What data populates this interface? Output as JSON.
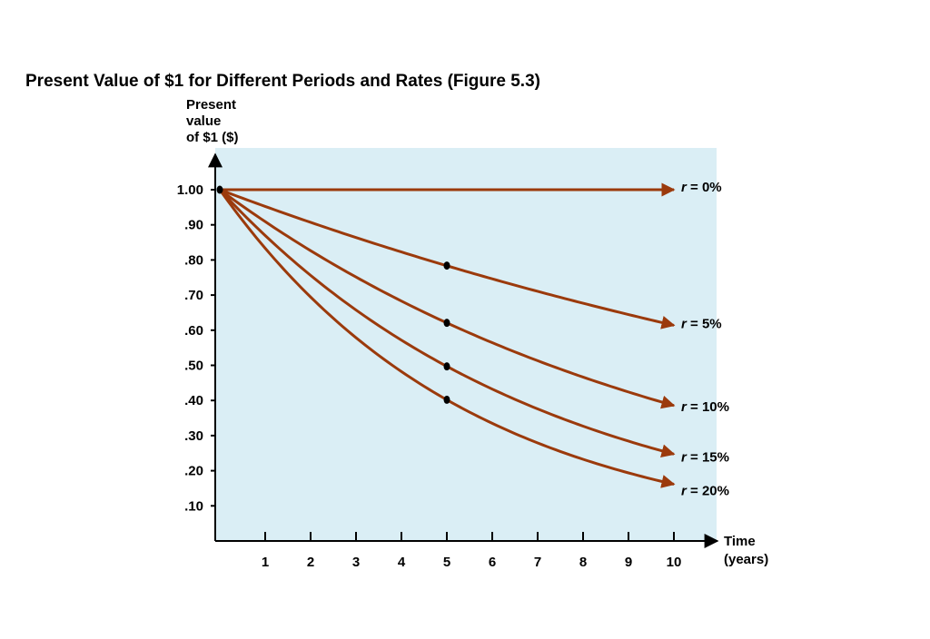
{
  "chart_data": {
    "type": "line",
    "title": "Present Value of $1 for Different Periods and Rates (Figure 5.3)",
    "ylabel": [
      "Present",
      "value",
      "of $1 ($)"
    ],
    "xlabel": [
      "Time",
      "(years)"
    ],
    "xlim": [
      0,
      11
    ],
    "ylim": [
      0,
      1.1
    ],
    "x_ticks": [
      1,
      2,
      3,
      4,
      5,
      6,
      7,
      8,
      9,
      10
    ],
    "y_ticks": [
      {
        "value": 1.0,
        "label": "1.00"
      },
      {
        "value": 0.9,
        "label": ".90"
      },
      {
        "value": 0.8,
        "label": ".80"
      },
      {
        "value": 0.7,
        "label": ".70"
      },
      {
        "value": 0.6,
        "label": ".60"
      },
      {
        "value": 0.5,
        "label": ".50"
      },
      {
        "value": 0.4,
        "label": ".40"
      },
      {
        "value": 0.3,
        "label": ".30"
      },
      {
        "value": 0.2,
        "label": ".20"
      },
      {
        "value": 0.1,
        "label": ".10"
      }
    ],
    "series": [
      {
        "label_r": "r",
        "label_rest": " = 0%",
        "rate": 0.0
      },
      {
        "label_r": "r",
        "label_rest": " = 5%",
        "rate": 0.05
      },
      {
        "label_r": "r",
        "label_rest": " = 10%",
        "rate": 0.1
      },
      {
        "label_r": "r",
        "label_rest": " = 15%",
        "rate": 0.15
      },
      {
        "label_r": "r",
        "label_rest": " = 20%",
        "rate": 0.2
      }
    ],
    "marked_points": [
      {
        "x": 0,
        "y": 1.0
      },
      {
        "x": 5,
        "y": 0.784
      },
      {
        "x": 5,
        "y": 0.621
      },
      {
        "x": 5,
        "y": 0.497
      },
      {
        "x": 5,
        "y": 0.402
      }
    ],
    "colors": {
      "plot_background": "#daeef5",
      "line": "#9b3a0c",
      "axis": "#000000",
      "point": "#000000"
    },
    "grid": false
  }
}
